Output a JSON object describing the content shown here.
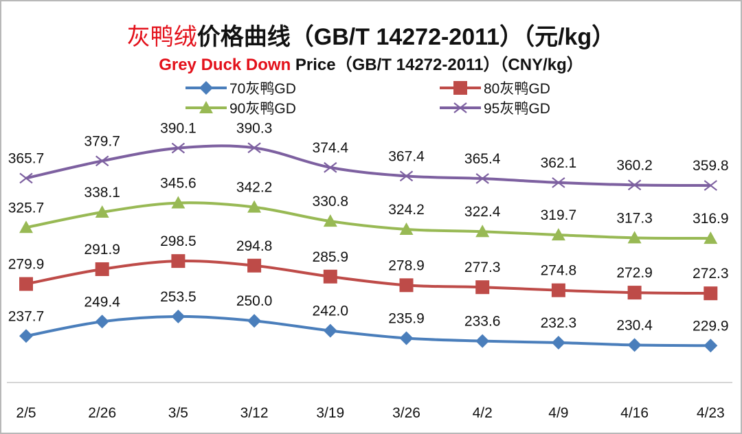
{
  "chart_data": {
    "type": "line",
    "title_cn_red": "灰鸭绒",
    "title_cn_rest": "价格曲线（GB/T 14272-2011）（元/kg）",
    "title_en_red": "Grey Duck Down",
    "title_en_rest": " Price（GB/T 14272-2011）（CNY/kg）",
    "categories": [
      "2/5",
      "2/26",
      "3/5",
      "3/12",
      "3/19",
      "3/26",
      "4/2",
      "4/9",
      "4/16",
      "4/23"
    ],
    "ylim": [
      200,
      420
    ],
    "grid": false,
    "legend_position": "top",
    "series": [
      {
        "name": "70灰鸭GD",
        "color": "#4a7ebb",
        "marker": "diamond",
        "values": [
          237.7,
          249.4,
          253.5,
          250.0,
          242.0,
          235.9,
          233.6,
          232.3,
          230.4,
          229.9
        ]
      },
      {
        "name": "80灰鸭GD",
        "color": "#be4b48",
        "marker": "square",
        "values": [
          279.9,
          291.9,
          298.5,
          294.8,
          285.9,
          278.9,
          277.3,
          274.8,
          272.9,
          272.3
        ]
      },
      {
        "name": "90灰鸭GD",
        "color": "#98b954",
        "marker": "triangle",
        "values": [
          325.7,
          338.1,
          345.6,
          342.2,
          330.8,
          324.2,
          322.4,
          319.7,
          317.3,
          316.9
        ]
      },
      {
        "name": "95灰鸭GD",
        "color": "#7d60a0",
        "marker": "x",
        "values": [
          365.7,
          379.7,
          390.1,
          390.3,
          374.4,
          367.4,
          365.4,
          362.1,
          360.2,
          359.8
        ]
      }
    ]
  }
}
